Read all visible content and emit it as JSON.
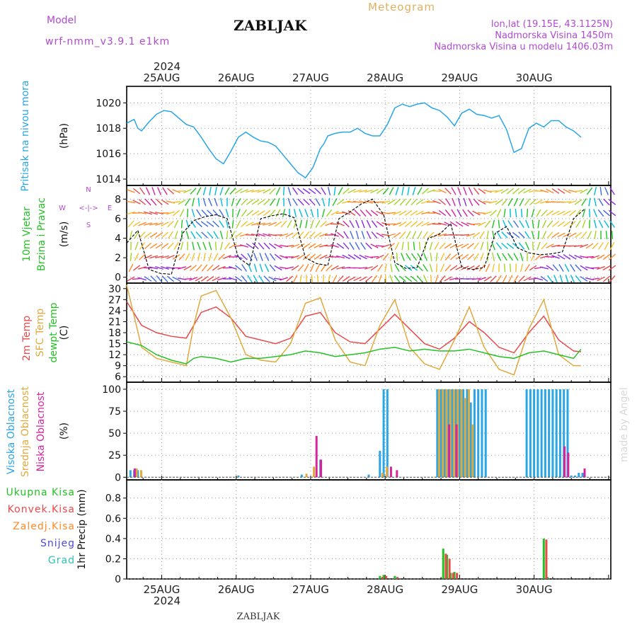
{
  "header": {
    "model_label": "Model",
    "model_name": "wrf-nmm_v3.9.1  e1km",
    "title": "ZABLJAK",
    "subtitle": "Meteogram",
    "lonlat": "lon,lat (19.15E, 43.1125N)",
    "elevation": "Nadmorska Visina 1450m",
    "model_elevation": "Nadmorska Visina u modelu 1406.03m",
    "year": "2024",
    "footer": "ZABLJAK",
    "watermark": "made by Angel"
  },
  "colors": {
    "pressure": "#2aa5e6",
    "temp2m": "#e84a4a",
    "sfc_temp": "#e0a93c",
    "dewpoint": "#22c222",
    "cloud_high": "#2aa5e6",
    "cloud_mid": "#e0a93c",
    "cloud_low": "#d6249f",
    "precip_total": "#22c222",
    "precip_conv": "#e84a4a",
    "precip_frz": "#ff8a2a",
    "snow": "#4a4ae0",
    "grad": "#2ec2b8",
    "model_text": "#b04ad0",
    "subtitle_text": "#e0b060"
  },
  "chart_data": [
    {
      "type": "line",
      "panel": "pressure",
      "ylabel_side": "Pritisak na nivou mora",
      "ylabel": "(hPa)",
      "ylim": [
        1013.5,
        1021.3
      ],
      "yticks": [
        1014,
        1016,
        1018,
        1020
      ],
      "grid": true,
      "x_tick_labels": [
        "25AUG",
        "26AUG",
        "27AUG",
        "28AUG",
        "29AUG",
        "30AUG"
      ],
      "series": [
        {
          "name": "Pritisak na nivou mora",
          "x": [
            0,
            0.1,
            0.15,
            0.2,
            0.3,
            0.4,
            0.5,
            0.6,
            0.7,
            0.8,
            0.9,
            1.0,
            1.1,
            1.2,
            1.3,
            1.4,
            1.5,
            1.6,
            1.7,
            1.8,
            1.9,
            2.0,
            2.1,
            2.2,
            2.3,
            2.4,
            2.5,
            2.6,
            2.65,
            2.7,
            2.8,
            2.9,
            3.0,
            3.1,
            3.2,
            3.3,
            3.4,
            3.5,
            3.6,
            3.7,
            3.8,
            3.9,
            4.0,
            4.1,
            4.2,
            4.3,
            4.4,
            4.5,
            4.6,
            4.7,
            4.8,
            4.9,
            5.0,
            5.1,
            5.2,
            5.3,
            5.4,
            5.5,
            5.6,
            5.7,
            5.8,
            5.9,
            6.0,
            6.1
          ],
          "values": [
            1018.4,
            1018.7,
            1018.0,
            1017.8,
            1018.5,
            1019.1,
            1019.4,
            1019.3,
            1018.8,
            1018.3,
            1018.1,
            1017.3,
            1016.4,
            1015.6,
            1015.2,
            1016.2,
            1017.3,
            1017.7,
            1017.3,
            1017.0,
            1016.9,
            1016.6,
            1015.9,
            1015.2,
            1014.5,
            1014.1,
            1014.9,
            1016.4,
            1016.8,
            1017.4,
            1017.6,
            1017.7,
            1017.7,
            1018.0,
            1017.6,
            1017.4,
            1017.4,
            1018.3,
            1019.6,
            1019.9,
            1019.7,
            1019.9,
            1020.0,
            1019.6,
            1019.4,
            1018.9,
            1018.2,
            1019.2,
            1019.5,
            1019.1,
            1019.0,
            1018.8,
            1019.0,
            1017.9,
            1016.1,
            1016.4,
            1018.0,
            1018.4,
            1018.1,
            1018.6,
            1018.6,
            1018.1,
            1017.8,
            1017.3
          ]
        }
      ]
    },
    {
      "type": "line",
      "panel": "wind",
      "ylabel_side": "10m Vjetar Brzina i Pravac",
      "ylabel": "(m/s)",
      "direction_key": [
        "N",
        "W",
        "<-|->",
        "E",
        "S"
      ],
      "ylim": [
        -0.6,
        9.4
      ],
      "yticks": [
        0,
        2,
        4,
        6,
        8
      ],
      "grid": true,
      "series": [
        {
          "name": "wind speed",
          "x": [
            0,
            0.15,
            0.3,
            0.45,
            0.6,
            0.75,
            0.9,
            1.05,
            1.2,
            1.35,
            1.5,
            1.65,
            1.8,
            1.95,
            2.1,
            2.25,
            2.4,
            2.55,
            2.7,
            2.85,
            3.0,
            3.15,
            3.3,
            3.45,
            3.6,
            3.75,
            3.9,
            4.05,
            4.2,
            4.35,
            4.5,
            4.65,
            4.8,
            4.95,
            5.1,
            5.25,
            5.4,
            5.55,
            5.7,
            5.85,
            6.0,
            6.15
          ],
          "values": [
            3.5,
            4.8,
            0.8,
            0.4,
            0.3,
            4.5,
            5.8,
            6.2,
            6.4,
            6.0,
            2.0,
            1.2,
            6.0,
            6.3,
            6.5,
            6.1,
            2.0,
            1.4,
            1.2,
            6.0,
            6.7,
            7.5,
            8.0,
            6.4,
            1.5,
            0.9,
            1.0,
            4.0,
            4.4,
            5.5,
            1.0,
            0.8,
            1.0,
            4.5,
            5.2,
            3.0,
            2.5,
            2.3,
            2.4,
            2.6,
            6.0,
            7.0
          ]
        }
      ]
    },
    {
      "type": "line",
      "panel": "temperature",
      "ylabel_side": [
        "2m Temp",
        "SFC Temp",
        "dewpt Temp"
      ],
      "ylabel": "(C)",
      "ylim": [
        4.5,
        31.5
      ],
      "yticks": [
        6,
        9,
        12,
        15,
        18,
        21,
        24,
        27,
        30
      ],
      "grid": true,
      "series": [
        {
          "name": "2m Temp",
          "x": [
            0,
            0.2,
            0.4,
            0.6,
            0.8,
            0.9,
            1.0,
            1.2,
            1.4,
            1.6,
            1.8,
            2.0,
            2.2,
            2.4,
            2.6,
            2.8,
            3.0,
            3.2,
            3.4,
            3.6,
            3.8,
            4.0,
            4.2,
            4.4,
            4.6,
            4.8,
            5.0,
            5.2,
            5.4,
            5.6,
            5.8,
            6.0,
            6.1
          ],
          "values": [
            26.5,
            20.0,
            18.0,
            17.0,
            16.5,
            20.0,
            23.5,
            25.0,
            22.0,
            17.0,
            16.0,
            15.0,
            16.5,
            22.5,
            23.5,
            18.0,
            15.5,
            15.0,
            19.0,
            23.0,
            19.0,
            15.0,
            13.5,
            16.5,
            21.0,
            18.0,
            14.0,
            12.5,
            18.0,
            22.5,
            16.0,
            13.0,
            12.8
          ]
        },
        {
          "name": "SFC Temp",
          "x": [
            0,
            0.2,
            0.4,
            0.6,
            0.8,
            0.9,
            1.0,
            1.2,
            1.4,
            1.6,
            1.8,
            2.0,
            2.2,
            2.4,
            2.6,
            2.8,
            3.0,
            3.2,
            3.4,
            3.6,
            3.8,
            4.0,
            4.2,
            4.4,
            4.6,
            4.8,
            5.0,
            5.2,
            5.4,
            5.6,
            5.8,
            6.0,
            6.1
          ],
          "values": [
            31.0,
            14.0,
            11.0,
            10.0,
            9.0,
            20.0,
            28.0,
            29.5,
            22.0,
            12.0,
            10.5,
            10.0,
            15.0,
            26.0,
            27.5,
            16.0,
            10.0,
            9.0,
            20.0,
            27.0,
            14.0,
            9.5,
            8.0,
            16.0,
            25.0,
            14.0,
            8.0,
            6.5,
            19.0,
            27.0,
            12.0,
            9.0,
            9.0
          ]
        },
        {
          "name": "dewpt Temp",
          "x": [
            0,
            0.2,
            0.4,
            0.6,
            0.8,
            0.9,
            1.0,
            1.2,
            1.4,
            1.6,
            1.8,
            2.0,
            2.2,
            2.4,
            2.6,
            2.8,
            3.0,
            3.2,
            3.4,
            3.6,
            3.8,
            4.0,
            4.2,
            4.4,
            4.6,
            4.8,
            5.0,
            5.2,
            5.4,
            5.6,
            5.8,
            6.0,
            6.1
          ],
          "values": [
            15.5,
            14.5,
            12.0,
            10.5,
            9.5,
            11.0,
            11.5,
            11.0,
            10.0,
            11.0,
            11.0,
            11.5,
            12.0,
            13.0,
            12.5,
            11.5,
            12.0,
            12.5,
            13.5,
            14.0,
            13.0,
            13.5,
            13.0,
            13.0,
            13.5,
            12.5,
            11.5,
            11.0,
            12.5,
            13.0,
            12.0,
            11.0,
            13.5
          ]
        }
      ]
    },
    {
      "type": "bar",
      "panel": "cloud",
      "ylabel_side": [
        "Visoka Oblacnost",
        "Srednja Oblacnost",
        "Niska Oblacnost"
      ],
      "ylabel": "(%)",
      "ylim": [
        -3,
        108
      ],
      "yticks": [
        0,
        25,
        50,
        75,
        100
      ],
      "grid": true,
      "series": [
        {
          "name": "Visoka Oblacnost",
          "x": [
            0.05,
            0.1,
            0.15,
            1.5,
            2.35,
            2.6,
            3.25,
            3.4,
            3.45,
            3.5,
            4.17,
            4.22,
            4.27,
            4.32,
            4.37,
            4.42,
            4.47,
            4.52,
            4.57,
            4.62,
            4.67,
            4.72,
            4.77,
            4.82,
            5.37,
            5.42,
            5.47,
            5.52,
            5.57,
            5.62,
            5.67,
            5.72,
            5.77,
            5.82,
            5.87,
            5.92,
            5.97,
            6.02,
            6.07,
            6.12
          ],
          "values": [
            8,
            8,
            8,
            2,
            3,
            20,
            3,
            30,
            100,
            100,
            100,
            100,
            100,
            100,
            100,
            100,
            100,
            100,
            100,
            85,
            100,
            100,
            100,
            100,
            100,
            100,
            100,
            100,
            100,
            100,
            100,
            100,
            100,
            100,
            100,
            100,
            2,
            2,
            5,
            5
          ]
        },
        {
          "name": "Srednja Oblacnost",
          "x": [
            0.12,
            0.18,
            2.4,
            2.5,
            3.42,
            3.48,
            4.18,
            4.23,
            4.28,
            4.33,
            4.38,
            4.43,
            4.48,
            4.53,
            4.58,
            4.63
          ],
          "values": [
            10,
            8,
            4,
            12,
            5,
            12,
            100,
            100,
            100,
            100,
            100,
            100,
            100,
            90,
            100,
            60
          ]
        },
        {
          "name": "Niska Oblacnost",
          "x": [
            0.08,
            2.52,
            2.58,
            3.52,
            3.6,
            4.3,
            4.4,
            5.85,
            5.9,
            6.12
          ],
          "values": [
            10,
            47,
            20,
            12,
            8,
            60,
            60,
            35,
            28,
            10
          ]
        }
      ]
    },
    {
      "type": "bar",
      "panel": "precipitation",
      "ylabel_side": [
        "Ukupna Kisa",
        "Konvek.Kisa",
        "Zaledj.Kisa",
        "Snijeg",
        "Grad"
      ],
      "ylabel": "1hr Precip (mm)",
      "ylim": [
        0,
        0.98
      ],
      "yticks": [
        0,
        0.2,
        0.4,
        0.6,
        0.8
      ],
      "ytick_labels": [
        "0",
        "0.2",
        "0.4",
        "0.6",
        "0.8"
      ],
      "grid": true,
      "series": [
        {
          "name": "Ukupna Kisa",
          "x": [
            3.4,
            3.45,
            3.6,
            4.25,
            4.3,
            4.35,
            4.4,
            5.6,
            5.65
          ],
          "values": [
            0.03,
            0.04,
            0.03,
            0.3,
            0.24,
            0.06,
            0.07,
            0.4,
            0.02
          ]
        },
        {
          "name": "Konvek.Kisa",
          "x": [
            3.42,
            3.47,
            3.62,
            4.27,
            4.32,
            4.37,
            4.42,
            5.62
          ],
          "values": [
            0.02,
            0.03,
            0.02,
            0.25,
            0.2,
            0.06,
            0.06,
            0.39
          ]
        }
      ]
    }
  ]
}
